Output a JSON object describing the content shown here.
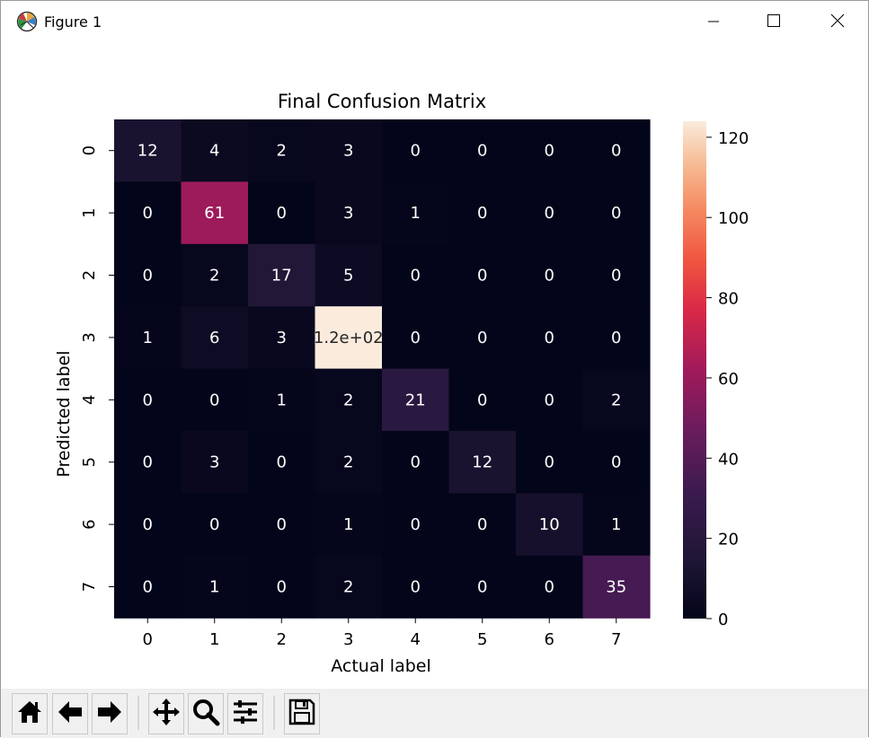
{
  "window": {
    "title": "Figure 1",
    "app_icon": "matplotlib-icon",
    "controls": {
      "minimize": "minimize-icon",
      "maximize": "maximize-icon",
      "close": "close-icon"
    }
  },
  "toolbar": {
    "buttons": [
      {
        "name": "home",
        "icon": "home-icon"
      },
      {
        "name": "back",
        "icon": "arrow-left-icon"
      },
      {
        "name": "forward",
        "icon": "arrow-right-icon"
      },
      {
        "name": "pan",
        "icon": "move-icon"
      },
      {
        "name": "zoom",
        "icon": "magnifier-icon"
      },
      {
        "name": "configure-subplots",
        "icon": "sliders-icon"
      },
      {
        "name": "save",
        "icon": "floppy-disk-icon"
      }
    ]
  },
  "chart_data": {
    "type": "heatmap",
    "title": "Final Confusion Matrix",
    "xlabel": "Actual label",
    "ylabel": "Predicted label",
    "x_ticks": [
      "0",
      "1",
      "2",
      "3",
      "4",
      "5",
      "6",
      "7"
    ],
    "y_ticks": [
      "0",
      "1",
      "2",
      "3",
      "4",
      "5",
      "6",
      "7"
    ],
    "matrix": [
      [
        12,
        4,
        2,
        3,
        0,
        0,
        0,
        0
      ],
      [
        0,
        61,
        0,
        3,
        1,
        0,
        0,
        0
      ],
      [
        0,
        2,
        17,
        5,
        0,
        0,
        0,
        0
      ],
      [
        1,
        6,
        3,
        124,
        0,
        0,
        0,
        0
      ],
      [
        0,
        0,
        1,
        2,
        21,
        0,
        0,
        2
      ],
      [
        0,
        3,
        0,
        2,
        0,
        12,
        0,
        0
      ],
      [
        0,
        0,
        0,
        1,
        0,
        0,
        10,
        1
      ],
      [
        0,
        1,
        0,
        2,
        0,
        0,
        0,
        35
      ]
    ],
    "cell_labels": [
      [
        "12",
        "4",
        "2",
        "3",
        "0",
        "0",
        "0",
        "0"
      ],
      [
        "0",
        "61",
        "0",
        "3",
        "1",
        "0",
        "0",
        "0"
      ],
      [
        "0",
        "2",
        "17",
        "5",
        "0",
        "0",
        "0",
        "0"
      ],
      [
        "1",
        "6",
        "3",
        "1.2e+02",
        "0",
        "0",
        "0",
        "0"
      ],
      [
        "0",
        "0",
        "1",
        "2",
        "21",
        "0",
        "0",
        "2"
      ],
      [
        "0",
        "3",
        "0",
        "2",
        "0",
        "12",
        "0",
        "0"
      ],
      [
        "0",
        "0",
        "0",
        "1",
        "0",
        "0",
        "10",
        "1"
      ],
      [
        "0",
        "1",
        "0",
        "2",
        "0",
        "0",
        "0",
        "35"
      ]
    ],
    "colormap": "rocket",
    "colorbar": {
      "range": [
        0,
        124
      ],
      "ticks": [
        0,
        20,
        40,
        60,
        80,
        100,
        120
      ]
    },
    "colors": {
      "low": "#03051a",
      "high": "#faebdd",
      "dark_text": "#262626",
      "light_text": "#ffffff"
    }
  }
}
